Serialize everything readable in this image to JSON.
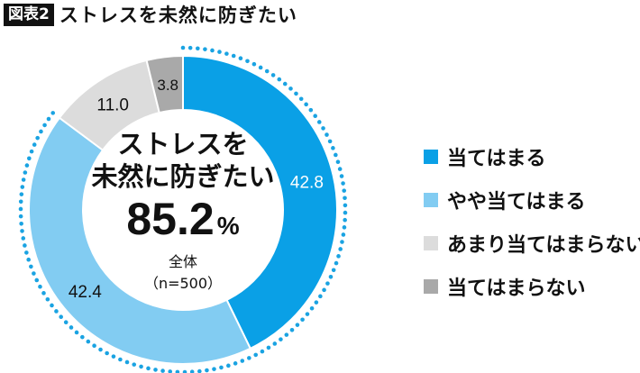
{
  "title": {
    "figure_label": "図表2",
    "text": "ストレスを未然に防ぎたい"
  },
  "center": {
    "line1": "ストレスを",
    "line2": "未然に防ぎたい",
    "value": "85.2",
    "unit": "%",
    "group": "全体",
    "sample": "（n=500）"
  },
  "colors": {
    "apply": "#0aa0e6",
    "somewhat": "#82ccf2",
    "not_much": "#dcdcdc",
    "not_apply": "#a9a9a9",
    "dots": "#1aa3e2"
  },
  "chart_data": {
    "type": "pie",
    "categories": [
      "当てはまる",
      "やや当てはまる",
      "あまり当てはまらない",
      "当てはまらない"
    ],
    "values": [
      42.8,
      42.4,
      11.0,
      3.8
    ],
    "value_labels": [
      "42.8",
      "42.4",
      "11.0",
      "3.8"
    ],
    "total_positive": 85.2,
    "legend_position": "right"
  }
}
